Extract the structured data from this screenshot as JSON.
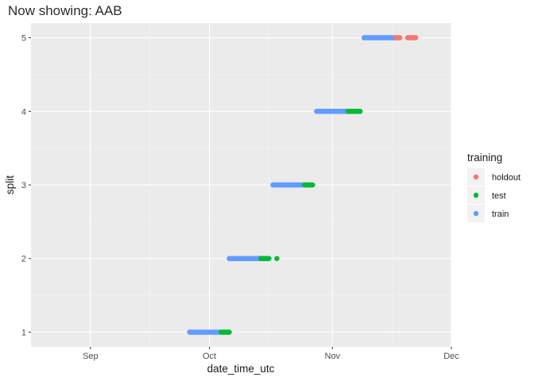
{
  "title": "Now showing: AAB",
  "chart_data": {
    "type": "scatter",
    "title": "Now showing: AAB",
    "xlabel": "date_time_utc",
    "ylabel": "split",
    "x_ticks": [
      "Sep",
      "Oct",
      "Nov",
      "Dec"
    ],
    "y_ticks": [
      1,
      2,
      3,
      4,
      5
    ],
    "xlim": [
      "2023-08-17",
      "2023-12-01"
    ],
    "ylim": [
      0.8,
      5.2
    ],
    "grid": true,
    "legend": {
      "title": "training",
      "position": "right",
      "entries": [
        {
          "label": "holdout",
          "color": "#F8766D"
        },
        {
          "label": "test",
          "color": "#00BA38"
        },
        {
          "label": "train",
          "color": "#619CFF"
        }
      ]
    },
    "series": [
      {
        "name": "train",
        "color": "#619CFF",
        "segments": [
          {
            "split": 1,
            "start": "2023-09-26",
            "end": "2023-10-04"
          },
          {
            "split": 2,
            "start": "2023-10-06",
            "end": "2023-10-14"
          },
          {
            "split": 3,
            "start": "2023-10-17",
            "end": "2023-10-25"
          },
          {
            "split": 4,
            "start": "2023-10-28",
            "end": "2023-11-05"
          },
          {
            "split": 5,
            "start": "2023-11-09",
            "end": "2023-11-17"
          }
        ]
      },
      {
        "name": "test",
        "color": "#00BA38",
        "segments": [
          {
            "split": 1,
            "start": "2023-10-04",
            "end": "2023-10-06"
          },
          {
            "split": 2,
            "start": "2023-10-14",
            "end": "2023-10-16"
          },
          {
            "split": 2,
            "start": "2023-10-18",
            "end": "2023-10-18"
          },
          {
            "split": 3,
            "start": "2023-10-25",
            "end": "2023-10-27"
          },
          {
            "split": 4,
            "start": "2023-11-05",
            "end": "2023-11-08"
          }
        ]
      },
      {
        "name": "holdout",
        "color": "#F8766D",
        "segments": [
          {
            "split": 5,
            "start": "2023-11-17",
            "end": "2023-11-18"
          },
          {
            "split": 5,
            "start": "2023-11-20",
            "end": "2023-11-22"
          }
        ]
      }
    ]
  }
}
